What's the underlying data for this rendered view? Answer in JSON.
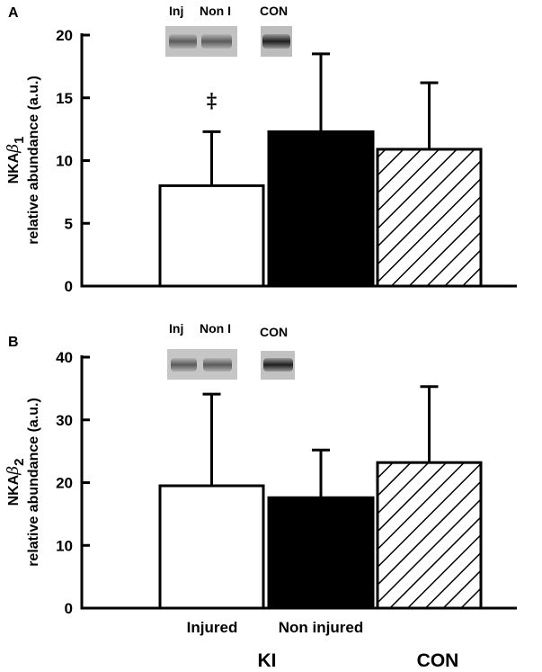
{
  "chart_data": [
    {
      "type": "bar",
      "panel": "A",
      "ylabel_prefix": "NKA",
      "ylabel_symbol": "β",
      "ylabel_subscript": "1",
      "ylabel_line2": "relative abundance (a.u.)",
      "ylim": [
        0,
        20
      ],
      "yticks": [
        "0",
        "5",
        "10",
        "15",
        "20"
      ],
      "series": [
        {
          "category": "Injured",
          "value": 8.0,
          "error": 4.3,
          "fill": "white"
        },
        {
          "category": "Non injured",
          "value": 12.3,
          "error": 6.2,
          "fill": "black"
        },
        {
          "category": "CON",
          "value": 10.9,
          "error": 5.3,
          "fill": "hatch"
        }
      ],
      "annotation": {
        "text": "‡",
        "category": "Injured"
      },
      "blot_labels": [
        "Inj",
        "Non I",
        "CON"
      ]
    },
    {
      "type": "bar",
      "panel": "B",
      "ylabel_prefix": "NKA",
      "ylabel_symbol": "β",
      "ylabel_subscript": "2",
      "ylabel_line2": "relative abundance (a.u.)",
      "ylim": [
        0,
        40
      ],
      "yticks": [
        "0",
        "10",
        "20",
        "30",
        "40"
      ],
      "series": [
        {
          "category": "Injured",
          "value": 19.5,
          "error": 14.6,
          "fill": "white"
        },
        {
          "category": "Non injured",
          "value": 17.6,
          "error": 7.6,
          "fill": "black"
        },
        {
          "category": "CON",
          "value": 23.2,
          "error": 12.1,
          "fill": "hatch"
        }
      ],
      "blot_labels": [
        "Inj",
        "Non I",
        "CON"
      ]
    }
  ],
  "x_labels": {
    "injured": "Injured",
    "non_injured": "Non injured",
    "ki": "KI",
    "con": "CON"
  }
}
